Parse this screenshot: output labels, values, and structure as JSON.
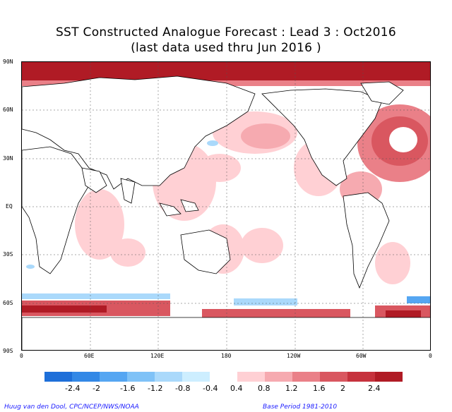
{
  "title_line1": "SST Constructed Analogue Forecast : Lead 3 : Oct2016",
  "title_line2": "(last data used thru Jun 2016 )",
  "lat_labels": [
    "90N",
    "60N",
    "30N",
    "EQ",
    "30S",
    "60S",
    "90S"
  ],
  "lon_labels": [
    "0",
    "60E",
    "120E",
    "180",
    "120W",
    "60W",
    "0"
  ],
  "colorbar": {
    "colors": [
      "#1e6fd9",
      "#3388e6",
      "#55a6f2",
      "#7fc2f7",
      "#aad9fb",
      "#cdeeff",
      "#ffffff",
      "#ffd0d4",
      "#f6aab0",
      "#ea8088",
      "#d95760",
      "#c6323d",
      "#b01b25"
    ],
    "labels": [
      "-2.4",
      "-2",
      "-1.6",
      "-1.2",
      "-0.8",
      "-0.4",
      "0.4",
      "0.8",
      "1.2",
      "1.6",
      "2",
      "2.4"
    ]
  },
  "footer_left": "Huug van den Dool, CPC/NCEP/NWS/NOAA",
  "footer_right": "Base Period 1981-2010"
}
